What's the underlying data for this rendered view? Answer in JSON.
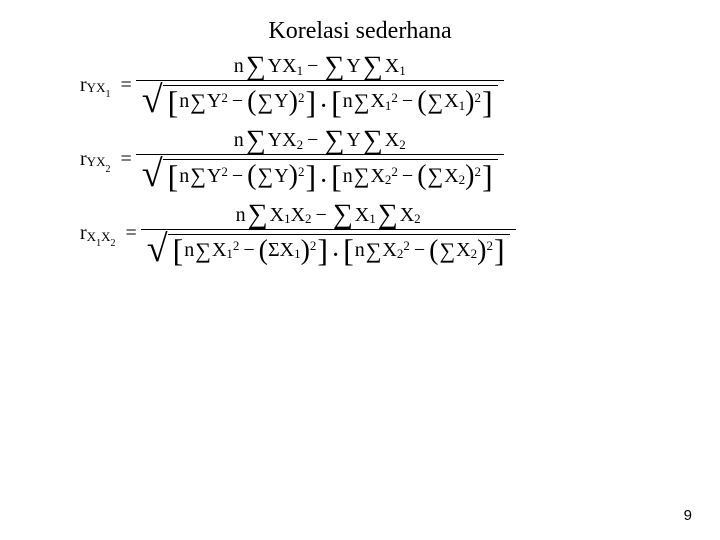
{
  "title": "Korelasi sederhana",
  "page_number": "9",
  "vars": {
    "r": "r",
    "Y": "Y",
    "X": "X",
    "n": "n",
    "one": "1",
    "two": "2",
    "eq": "=",
    "minus": "−",
    "dot": ".",
    "sigma": "∑",
    "Sigma": "Σ",
    "sqrt": "√",
    "lb": "[",
    "rb": "]",
    "lp": "(",
    "rp": ")",
    "sq": "2"
  }
}
